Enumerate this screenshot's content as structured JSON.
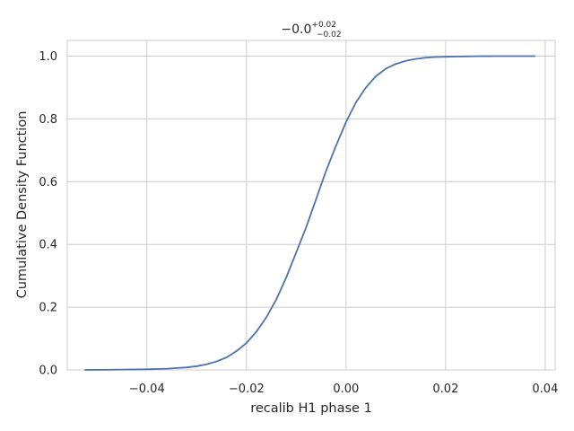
{
  "chart_data": {
    "type": "line",
    "title": {
      "main": "−0.0",
      "sup": "+0.02",
      "sub": "−0.02"
    },
    "xlabel": "recalib H1 phase 1",
    "ylabel": "Cumulative Density Function",
    "xlim": [
      -0.056,
      0.042
    ],
    "ylim": [
      0.0,
      1.05
    ],
    "xticks": [
      {
        "value": -0.04,
        "label": "−0.04"
      },
      {
        "value": -0.02,
        "label": "−0.02"
      },
      {
        "value": 0.0,
        "label": "0.00"
      },
      {
        "value": 0.02,
        "label": "0.02"
      },
      {
        "value": 0.04,
        "label": "0.04"
      }
    ],
    "yticks": [
      {
        "value": 0.0,
        "label": "0.0"
      },
      {
        "value": 0.2,
        "label": "0.2"
      },
      {
        "value": 0.4,
        "label": "0.4"
      },
      {
        "value": 0.6,
        "label": "0.6"
      },
      {
        "value": 0.8,
        "label": "0.8"
      },
      {
        "value": 1.0,
        "label": "1.0"
      }
    ],
    "grid": true,
    "series": [
      {
        "color": "#4c72b0",
        "x": [
          -0.0525,
          -0.045,
          -0.04,
          -0.036,
          -0.032,
          -0.03,
          -0.028,
          -0.026,
          -0.024,
          -0.022,
          -0.02,
          -0.018,
          -0.016,
          -0.014,
          -0.012,
          -0.01,
          -0.008,
          -0.006,
          -0.004,
          -0.002,
          0.0,
          0.002,
          0.004,
          0.006,
          0.008,
          0.01,
          0.012,
          0.014,
          0.016,
          0.018,
          0.02,
          0.022,
          0.024,
          0.026,
          0.028,
          0.03,
          0.038
        ],
        "y": [
          0.0,
          0.001,
          0.002,
          0.004,
          0.008,
          0.012,
          0.018,
          0.027,
          0.04,
          0.06,
          0.086,
          0.122,
          0.168,
          0.225,
          0.295,
          0.375,
          0.455,
          0.545,
          0.635,
          0.715,
          0.79,
          0.853,
          0.9,
          0.936,
          0.96,
          0.975,
          0.985,
          0.991,
          0.995,
          0.997,
          0.998,
          0.9985,
          0.999,
          0.9995,
          0.9998,
          1.0,
          1.0
        ]
      }
    ]
  }
}
